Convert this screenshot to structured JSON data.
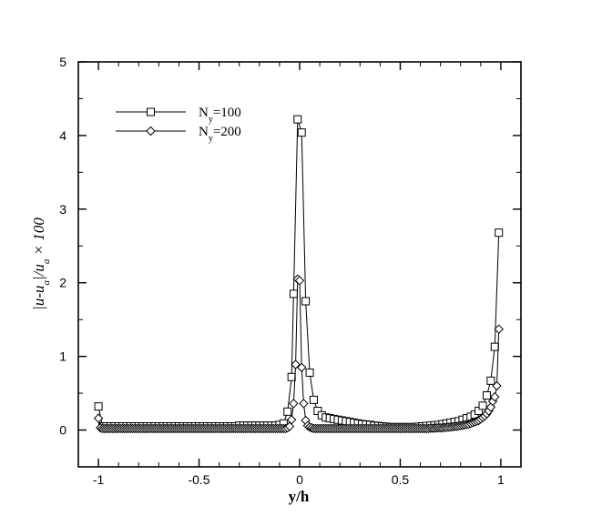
{
  "chart_data": {
    "type": "line",
    "title": "",
    "xlabel": "y/h",
    "ylabel": {
      "part1": "|u-u",
      "sub1": "a",
      "part2": "|/u",
      "sub2": "a",
      "part3": " × 100"
    },
    "xlim": [
      -1.1,
      1.1
    ],
    "ylim": [
      -0.5,
      5
    ],
    "xticks": [
      -1,
      -0.5,
      0,
      0.5,
      1
    ],
    "xtick_labels": [
      "-1",
      "-0.5",
      "0",
      "0.5",
      "1"
    ],
    "yticks": [
      0,
      1,
      2,
      3,
      4,
      5
    ],
    "ytick_labels": [
      "0",
      "1",
      "2",
      "3",
      "4",
      "5"
    ],
    "grid": false,
    "legend_position": "top-left",
    "series": [
      {
        "name": {
          "base": "N",
          "sub": "y",
          "rest": "=100"
        },
        "marker": "square",
        "points": [
          [
            -1.0,
            0.32
          ],
          [
            -0.98,
            0.05
          ],
          [
            -0.96,
            0.05
          ],
          [
            -0.94,
            0.05
          ],
          [
            -0.92,
            0.05
          ],
          [
            -0.9,
            0.05
          ],
          [
            -0.88,
            0.05
          ],
          [
            -0.86,
            0.05
          ],
          [
            -0.84,
            0.05
          ],
          [
            -0.82,
            0.05
          ],
          [
            -0.8,
            0.05
          ],
          [
            -0.78,
            0.05
          ],
          [
            -0.76,
            0.05
          ],
          [
            -0.74,
            0.05
          ],
          [
            -0.72,
            0.05
          ],
          [
            -0.7,
            0.05
          ],
          [
            -0.68,
            0.05
          ],
          [
            -0.66,
            0.05
          ],
          [
            -0.64,
            0.05
          ],
          [
            -0.62,
            0.05
          ],
          [
            -0.6,
            0.05
          ],
          [
            -0.58,
            0.05
          ],
          [
            -0.56,
            0.05
          ],
          [
            -0.54,
            0.05
          ],
          [
            -0.52,
            0.05
          ],
          [
            -0.5,
            0.05
          ],
          [
            -0.48,
            0.05
          ],
          [
            -0.46,
            0.05
          ],
          [
            -0.44,
            0.05
          ],
          [
            -0.42,
            0.05
          ],
          [
            -0.4,
            0.05
          ],
          [
            -0.38,
            0.05
          ],
          [
            -0.36,
            0.05
          ],
          [
            -0.34,
            0.05
          ],
          [
            -0.32,
            0.05
          ],
          [
            -0.3,
            0.06
          ],
          [
            -0.28,
            0.06
          ],
          [
            -0.26,
            0.06
          ],
          [
            -0.24,
            0.06
          ],
          [
            -0.22,
            0.06
          ],
          [
            -0.2,
            0.06
          ],
          [
            -0.18,
            0.06
          ],
          [
            -0.16,
            0.06
          ],
          [
            -0.14,
            0.06
          ],
          [
            -0.12,
            0.06
          ],
          [
            -0.1,
            0.07
          ],
          [
            -0.08,
            0.09
          ],
          [
            -0.06,
            0.25
          ],
          [
            -0.04,
            0.72
          ],
          [
            -0.03,
            1.85
          ],
          [
            -0.01,
            4.22
          ],
          [
            0.01,
            4.04
          ],
          [
            0.03,
            1.75
          ],
          [
            0.05,
            0.78
          ],
          [
            0.07,
            0.41
          ],
          [
            0.09,
            0.26
          ],
          [
            0.11,
            0.2
          ],
          [
            0.13,
            0.17
          ],
          [
            0.15,
            0.16
          ],
          [
            0.17,
            0.15
          ],
          [
            0.19,
            0.14
          ],
          [
            0.21,
            0.13
          ],
          [
            0.23,
            0.12
          ],
          [
            0.25,
            0.11
          ],
          [
            0.27,
            0.1
          ],
          [
            0.29,
            0.09
          ],
          [
            0.31,
            0.08
          ],
          [
            0.33,
            0.075
          ],
          [
            0.35,
            0.07
          ],
          [
            0.37,
            0.06
          ],
          [
            0.39,
            0.055
          ],
          [
            0.41,
            0.05
          ],
          [
            0.43,
            0.045
          ],
          [
            0.45,
            0.04
          ],
          [
            0.47,
            0.04
          ],
          [
            0.49,
            0.04
          ],
          [
            0.51,
            0.04
          ],
          [
            0.53,
            0.04
          ],
          [
            0.55,
            0.04
          ],
          [
            0.57,
            0.04
          ],
          [
            0.59,
            0.045
          ],
          [
            0.61,
            0.05
          ],
          [
            0.63,
            0.055
          ],
          [
            0.65,
            0.06
          ],
          [
            0.67,
            0.065
          ],
          [
            0.69,
            0.07
          ],
          [
            0.71,
            0.08
          ],
          [
            0.73,
            0.09
          ],
          [
            0.75,
            0.1
          ],
          [
            0.77,
            0.11
          ],
          [
            0.79,
            0.12
          ],
          [
            0.81,
            0.14
          ],
          [
            0.83,
            0.16
          ],
          [
            0.85,
            0.18
          ],
          [
            0.87,
            0.21
          ],
          [
            0.89,
            0.26
          ],
          [
            0.91,
            0.33
          ],
          [
            0.93,
            0.47
          ],
          [
            0.95,
            0.67
          ],
          [
            0.97,
            1.13
          ],
          [
            0.99,
            2.68
          ]
        ]
      },
      {
        "name": {
          "base": "N",
          "sub": "y",
          "rest": "=200"
        },
        "marker": "diamond",
        "points": [
          [
            -1.0,
            0.16
          ],
          [
            -0.99,
            0.03
          ],
          [
            -0.98,
            0.02
          ],
          [
            -0.97,
            0.02
          ],
          [
            -0.96,
            0.02
          ],
          [
            -0.95,
            0.02
          ],
          [
            -0.94,
            0.02
          ],
          [
            -0.93,
            0.02
          ],
          [
            -0.92,
            0.02
          ],
          [
            -0.91,
            0.02
          ],
          [
            -0.9,
            0.02
          ],
          [
            -0.89,
            0.02
          ],
          [
            -0.88,
            0.02
          ],
          [
            -0.87,
            0.02
          ],
          [
            -0.86,
            0.02
          ],
          [
            -0.85,
            0.02
          ],
          [
            -0.84,
            0.02
          ],
          [
            -0.83,
            0.02
          ],
          [
            -0.82,
            0.02
          ],
          [
            -0.81,
            0.02
          ],
          [
            -0.8,
            0.02
          ],
          [
            -0.79,
            0.02
          ],
          [
            -0.78,
            0.02
          ],
          [
            -0.77,
            0.02
          ],
          [
            -0.76,
            0.02
          ],
          [
            -0.75,
            0.02
          ],
          [
            -0.74,
            0.02
          ],
          [
            -0.73,
            0.02
          ],
          [
            -0.72,
            0.02
          ],
          [
            -0.71,
            0.02
          ],
          [
            -0.7,
            0.02
          ],
          [
            -0.69,
            0.02
          ],
          [
            -0.68,
            0.02
          ],
          [
            -0.67,
            0.02
          ],
          [
            -0.66,
            0.02
          ],
          [
            -0.65,
            0.02
          ],
          [
            -0.64,
            0.02
          ],
          [
            -0.63,
            0.02
          ],
          [
            -0.62,
            0.02
          ],
          [
            -0.61,
            0.02
          ],
          [
            -0.6,
            0.02
          ],
          [
            -0.59,
            0.02
          ],
          [
            -0.58,
            0.02
          ],
          [
            -0.57,
            0.02
          ],
          [
            -0.56,
            0.02
          ],
          [
            -0.55,
            0.02
          ],
          [
            -0.54,
            0.02
          ],
          [
            -0.53,
            0.02
          ],
          [
            -0.52,
            0.02
          ],
          [
            -0.51,
            0.02
          ],
          [
            -0.5,
            0.02
          ],
          [
            -0.49,
            0.02
          ],
          [
            -0.48,
            0.02
          ],
          [
            -0.47,
            0.02
          ],
          [
            -0.46,
            0.02
          ],
          [
            -0.45,
            0.02
          ],
          [
            -0.44,
            0.02
          ],
          [
            -0.43,
            0.02
          ],
          [
            -0.42,
            0.02
          ],
          [
            -0.41,
            0.02
          ],
          [
            -0.4,
            0.02
          ],
          [
            -0.39,
            0.02
          ],
          [
            -0.38,
            0.02
          ],
          [
            -0.37,
            0.02
          ],
          [
            -0.36,
            0.02
          ],
          [
            -0.35,
            0.02
          ],
          [
            -0.34,
            0.02
          ],
          [
            -0.33,
            0.02
          ],
          [
            -0.32,
            0.02
          ],
          [
            -0.31,
            0.02
          ],
          [
            -0.3,
            0.02
          ],
          [
            -0.29,
            0.02
          ],
          [
            -0.28,
            0.02
          ],
          [
            -0.27,
            0.02
          ],
          [
            -0.26,
            0.02
          ],
          [
            -0.25,
            0.02
          ],
          [
            -0.24,
            0.02
          ],
          [
            -0.23,
            0.02
          ],
          [
            -0.22,
            0.02
          ],
          [
            -0.21,
            0.02
          ],
          [
            -0.2,
            0.02
          ],
          [
            -0.19,
            0.02
          ],
          [
            -0.18,
            0.02
          ],
          [
            -0.17,
            0.02
          ],
          [
            -0.16,
            0.02
          ],
          [
            -0.15,
            0.02
          ],
          [
            -0.14,
            0.02
          ],
          [
            -0.13,
            0.02
          ],
          [
            -0.12,
            0.02
          ],
          [
            -0.11,
            0.02
          ],
          [
            -0.1,
            0.02
          ],
          [
            -0.09,
            0.02
          ],
          [
            -0.08,
            0.02
          ],
          [
            -0.07,
            0.02
          ],
          [
            -0.06,
            0.03
          ],
          [
            -0.05,
            0.05
          ],
          [
            -0.04,
            0.14
          ],
          [
            -0.03,
            0.36
          ],
          [
            -0.02,
            0.89
          ],
          [
            -0.01,
            2.05
          ],
          [
            0.0,
            2.03
          ],
          [
            0.01,
            0.85
          ],
          [
            0.02,
            0.36
          ],
          [
            0.03,
            0.13
          ],
          [
            0.04,
            0.06
          ],
          [
            0.05,
            0.04
          ],
          [
            0.06,
            0.03
          ],
          [
            0.07,
            0.02
          ],
          [
            0.08,
            0.02
          ],
          [
            0.09,
            0.02
          ],
          [
            0.1,
            0.02
          ],
          [
            0.11,
            0.02
          ],
          [
            0.12,
            0.02
          ],
          [
            0.13,
            0.02
          ],
          [
            0.14,
            0.02
          ],
          [
            0.15,
            0.02
          ],
          [
            0.16,
            0.02
          ],
          [
            0.17,
            0.02
          ],
          [
            0.18,
            0.02
          ],
          [
            0.19,
            0.02
          ],
          [
            0.2,
            0.02
          ],
          [
            0.21,
            0.02
          ],
          [
            0.22,
            0.02
          ],
          [
            0.23,
            0.02
          ],
          [
            0.24,
            0.02
          ],
          [
            0.25,
            0.02
          ],
          [
            0.26,
            0.02
          ],
          [
            0.27,
            0.02
          ],
          [
            0.28,
            0.02
          ],
          [
            0.29,
            0.02
          ],
          [
            0.3,
            0.02
          ],
          [
            0.31,
            0.02
          ],
          [
            0.32,
            0.02
          ],
          [
            0.33,
            0.02
          ],
          [
            0.34,
            0.02
          ],
          [
            0.35,
            0.02
          ],
          [
            0.36,
            0.02
          ],
          [
            0.37,
            0.02
          ],
          [
            0.38,
            0.02
          ],
          [
            0.39,
            0.02
          ],
          [
            0.4,
            0.02
          ],
          [
            0.41,
            0.02
          ],
          [
            0.42,
            0.02
          ],
          [
            0.43,
            0.02
          ],
          [
            0.44,
            0.02
          ],
          [
            0.45,
            0.02
          ],
          [
            0.46,
            0.02
          ],
          [
            0.47,
            0.02
          ],
          [
            0.48,
            0.02
          ],
          [
            0.49,
            0.02
          ],
          [
            0.5,
            0.02
          ],
          [
            0.51,
            0.02
          ],
          [
            0.52,
            0.02
          ],
          [
            0.53,
            0.02
          ],
          [
            0.54,
            0.02
          ],
          [
            0.55,
            0.02
          ],
          [
            0.56,
            0.02
          ],
          [
            0.57,
            0.02
          ],
          [
            0.58,
            0.02
          ],
          [
            0.59,
            0.02
          ],
          [
            0.6,
            0.02
          ],
          [
            0.61,
            0.02
          ],
          [
            0.62,
            0.02
          ],
          [
            0.63,
            0.02
          ],
          [
            0.64,
            0.02
          ],
          [
            0.65,
            0.025
          ],
          [
            0.66,
            0.025
          ],
          [
            0.67,
            0.025
          ],
          [
            0.68,
            0.03
          ],
          [
            0.69,
            0.03
          ],
          [
            0.7,
            0.03
          ],
          [
            0.71,
            0.03
          ],
          [
            0.72,
            0.035
          ],
          [
            0.73,
            0.035
          ],
          [
            0.74,
            0.04
          ],
          [
            0.75,
            0.04
          ],
          [
            0.76,
            0.045
          ],
          [
            0.77,
            0.05
          ],
          [
            0.78,
            0.05
          ],
          [
            0.79,
            0.055
          ],
          [
            0.8,
            0.06
          ],
          [
            0.81,
            0.065
          ],
          [
            0.82,
            0.07
          ],
          [
            0.83,
            0.075
          ],
          [
            0.84,
            0.08
          ],
          [
            0.85,
            0.09
          ],
          [
            0.86,
            0.1
          ],
          [
            0.87,
            0.11
          ],
          [
            0.88,
            0.12
          ],
          [
            0.89,
            0.13
          ],
          [
            0.9,
            0.15
          ],
          [
            0.91,
            0.17
          ],
          [
            0.92,
            0.19
          ],
          [
            0.93,
            0.22
          ],
          [
            0.94,
            0.26
          ],
          [
            0.95,
            0.31
          ],
          [
            0.96,
            0.39
          ],
          [
            0.97,
            0.45
          ],
          [
            0.98,
            0.6
          ],
          [
            0.99,
            1.37
          ]
        ]
      }
    ]
  }
}
